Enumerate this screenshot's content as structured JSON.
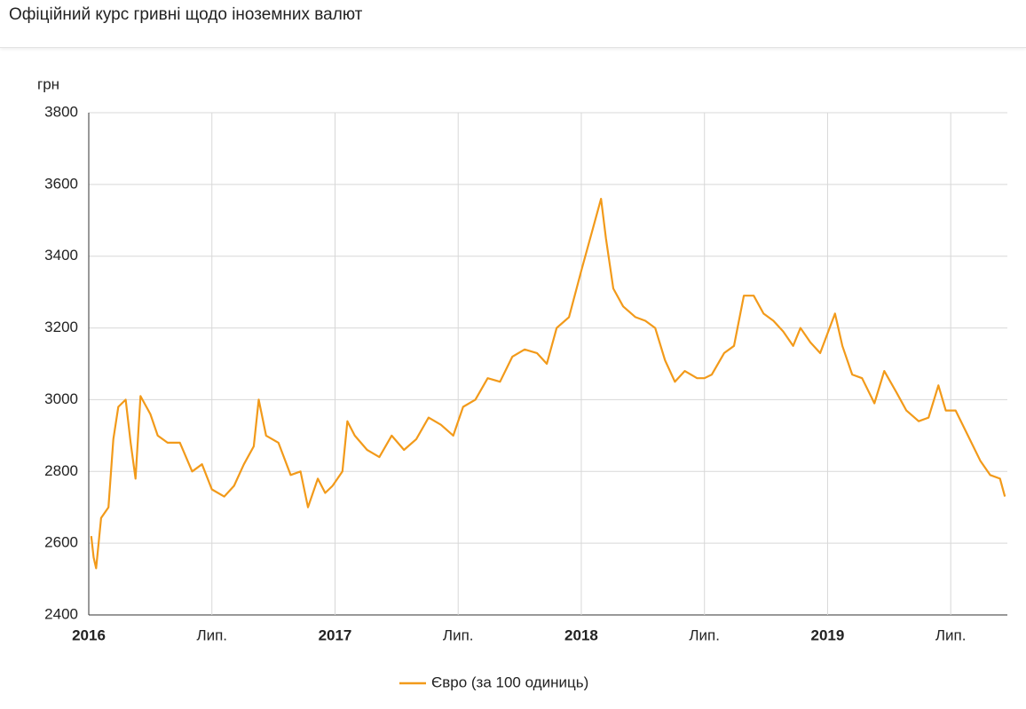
{
  "chart_data": {
    "type": "line",
    "title": "Офіційний курс гривні щодо іноземних валют",
    "y_label": "грн",
    "x": [
      2016.01,
      2016.02,
      2016.03,
      2016.05,
      2016.08,
      2016.1,
      2016.12,
      2016.15,
      2016.17,
      2016.19,
      2016.21,
      2016.25,
      2016.28,
      2016.32,
      2016.37,
      2016.42,
      2016.46,
      2016.5,
      2016.55,
      2016.59,
      2016.63,
      2016.67,
      2016.69,
      2016.72,
      2016.77,
      2016.82,
      2016.86,
      2016.89,
      2016.93,
      2016.96,
      2016.99,
      2017.03,
      2017.05,
      2017.08,
      2017.13,
      2017.18,
      2017.23,
      2017.28,
      2017.33,
      2017.38,
      2017.43,
      2017.48,
      2017.52,
      2017.57,
      2017.62,
      2017.67,
      2017.72,
      2017.77,
      2017.82,
      2017.86,
      2017.9,
      2017.95,
      2018.0,
      2018.04,
      2018.08,
      2018.1,
      2018.13,
      2018.17,
      2018.22,
      2018.26,
      2018.3,
      2018.34,
      2018.38,
      2018.42,
      2018.47,
      2018.5,
      2018.53,
      2018.58,
      2018.62,
      2018.66,
      2018.7,
      2018.74,
      2018.78,
      2018.82,
      2018.86,
      2018.89,
      2018.93,
      2018.97,
      2019.03,
      2019.06,
      2019.1,
      2019.14,
      2019.19,
      2019.23,
      2019.28,
      2019.32,
      2019.37,
      2019.41,
      2019.45,
      2019.48,
      2019.52,
      2019.57,
      2019.62,
      2019.66,
      2019.7,
      2019.72
    ],
    "series": [
      {
        "name": "Євро (за 100 одиниць)",
        "color": "#f29a1a",
        "values": [
          2620,
          2560,
          2530,
          2670,
          2700,
          2890,
          2980,
          3000,
          2880,
          2780,
          3010,
          2960,
          2900,
          2880,
          2880,
          2800,
          2820,
          2750,
          2730,
          2760,
          2820,
          2870,
          3000,
          2900,
          2880,
          2790,
          2800,
          2700,
          2780,
          2740,
          2760,
          2800,
          2940,
          2900,
          2860,
          2840,
          2900,
          2860,
          2890,
          2950,
          2930,
          2900,
          2980,
          3000,
          3060,
          3050,
          3120,
          3140,
          3130,
          3100,
          3200,
          3230,
          3360,
          3460,
          3560,
          3450,
          3310,
          3260,
          3230,
          3220,
          3200,
          3110,
          3050,
          3080,
          3060,
          3060,
          3070,
          3130,
          3150,
          3290,
          3290,
          3240,
          3220,
          3190,
          3150,
          3200,
          3160,
          3130,
          3240,
          3150,
          3070,
          3060,
          2990,
          3080,
          3020,
          2970,
          2940,
          2950,
          3040,
          2970,
          2970,
          2900,
          2830,
          2790,
          2780,
          2730
        ]
      }
    ],
    "xlim": [
      2016,
      2019.73
    ],
    "xticks": [
      2016,
      {
        "value": 2016.5,
        "label": "Лип."
      },
      2017,
      {
        "value": 2017.5,
        "label": "Лип."
      },
      2018,
      {
        "value": 2018.5,
        "label": "Лип."
      },
      2019,
      {
        "value": 2019.5,
        "label": "Лип."
      }
    ],
    "ylim": [
      2400,
      3800
    ],
    "yticks": [
      2400,
      2600,
      2800,
      3000,
      3200,
      3400,
      3600,
      3800
    ],
    "grid": true,
    "legend": "bottom"
  }
}
